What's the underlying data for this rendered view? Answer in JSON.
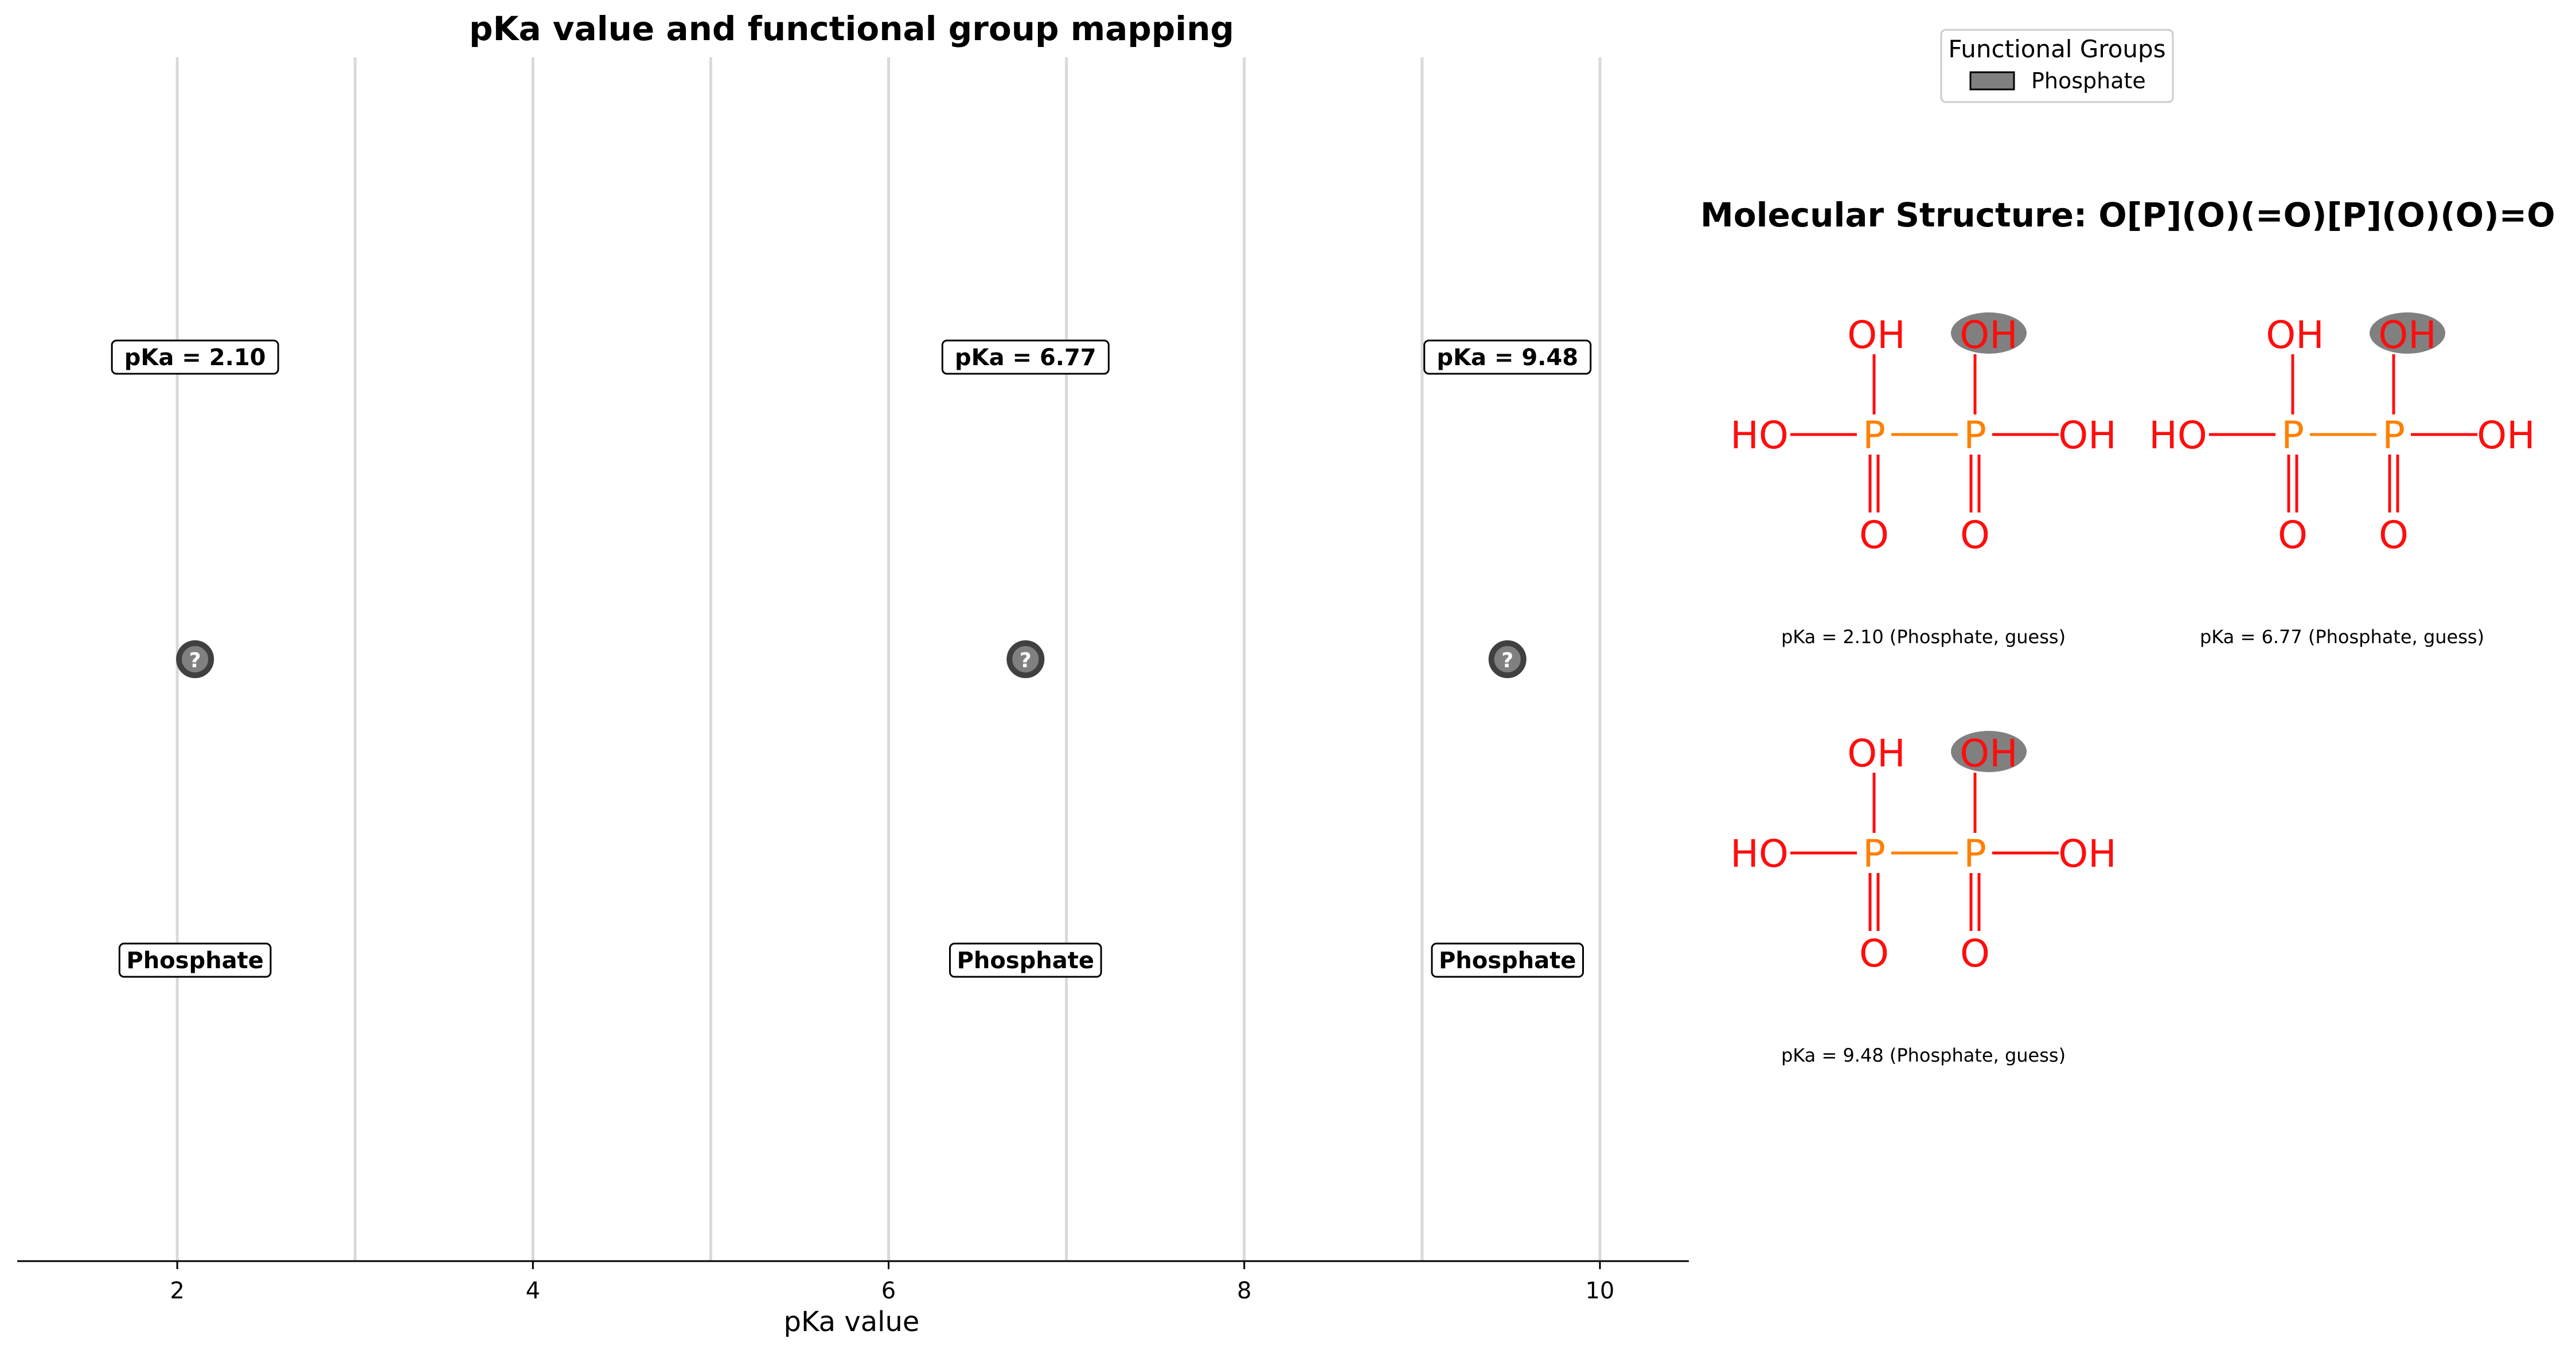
{
  "chart_data": [
    {
      "type": "scatter",
      "title": "pKa value and functional group mapping",
      "xlabel": "pKa value",
      "ylabel": "",
      "xlim": [
        1.1,
        10.5
      ],
      "ylim": [
        0,
        1
      ],
      "xticks": [
        2,
        4,
        6,
        8,
        10
      ],
      "xtick_labels": [
        "2",
        "4",
        "6",
        "8",
        "10"
      ],
      "grid": "vertical",
      "grid_x": [
        2,
        3,
        4,
        5,
        6,
        7,
        8,
        9,
        10
      ],
      "marker_symbol": "?",
      "points": [
        {
          "x": 2.1,
          "value_label": "pKa = 2.10",
          "group": "Phosphate"
        },
        {
          "x": 6.77,
          "value_label": "pKa = 6.77",
          "group": "Phosphate"
        },
        {
          "x": 9.48,
          "value_label": "pKa = 9.48",
          "group": "Phosphate"
        }
      ],
      "legend": {
        "title": "Functional Groups",
        "placement": "top-right",
        "entries": [
          {
            "name": "Phosphate",
            "color": "#808080"
          }
        ]
      }
    }
  ],
  "structure_panel": {
    "title": "Molecular Structure: O[P](O)(=O)[P](O)(O)=O",
    "molecules": [
      {
        "caption": "pKa = 2.10 (Phosphate, guess)"
      },
      {
        "caption": "pKa = 6.77 (Phosphate, guess)"
      },
      {
        "caption": "pKa = 9.48 (Phosphate, guess)"
      }
    ],
    "atom_labels": {
      "hydroxyl_top": "OH",
      "hydroxyl_left": "HO",
      "hydroxyl_right": "OH",
      "phosphorus": "P",
      "oxo": "O"
    }
  },
  "colors": {
    "grid": "#d9d9d9",
    "marker_fill": "#808080",
    "marker_edge": "#404040",
    "oxygen": "#ff0d0d",
    "phosphorus": "#ff8000",
    "highlight": "#808080",
    "text": "#000000"
  }
}
